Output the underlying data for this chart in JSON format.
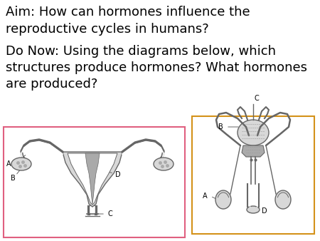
{
  "title_line1": "Aim: How can hormones influence the",
  "title_line2": "reproductive cycles in humans?",
  "subtitle_line1": "Do Now: Using the diagrams below, which",
  "subtitle_line2": "structures produce hormones? What hormones",
  "subtitle_line3": "are produced?",
  "bg_color": "#ffffff",
  "text_color": "#000000",
  "female_box_color": "#e06080",
  "male_box_color": "#d4921a",
  "font_size_title": 13,
  "font_size_label": 7,
  "diagram_color": "#666666",
  "fill_light": "#d8d8d8",
  "fill_mid": "#aaaaaa",
  "fill_dark": "#888888"
}
